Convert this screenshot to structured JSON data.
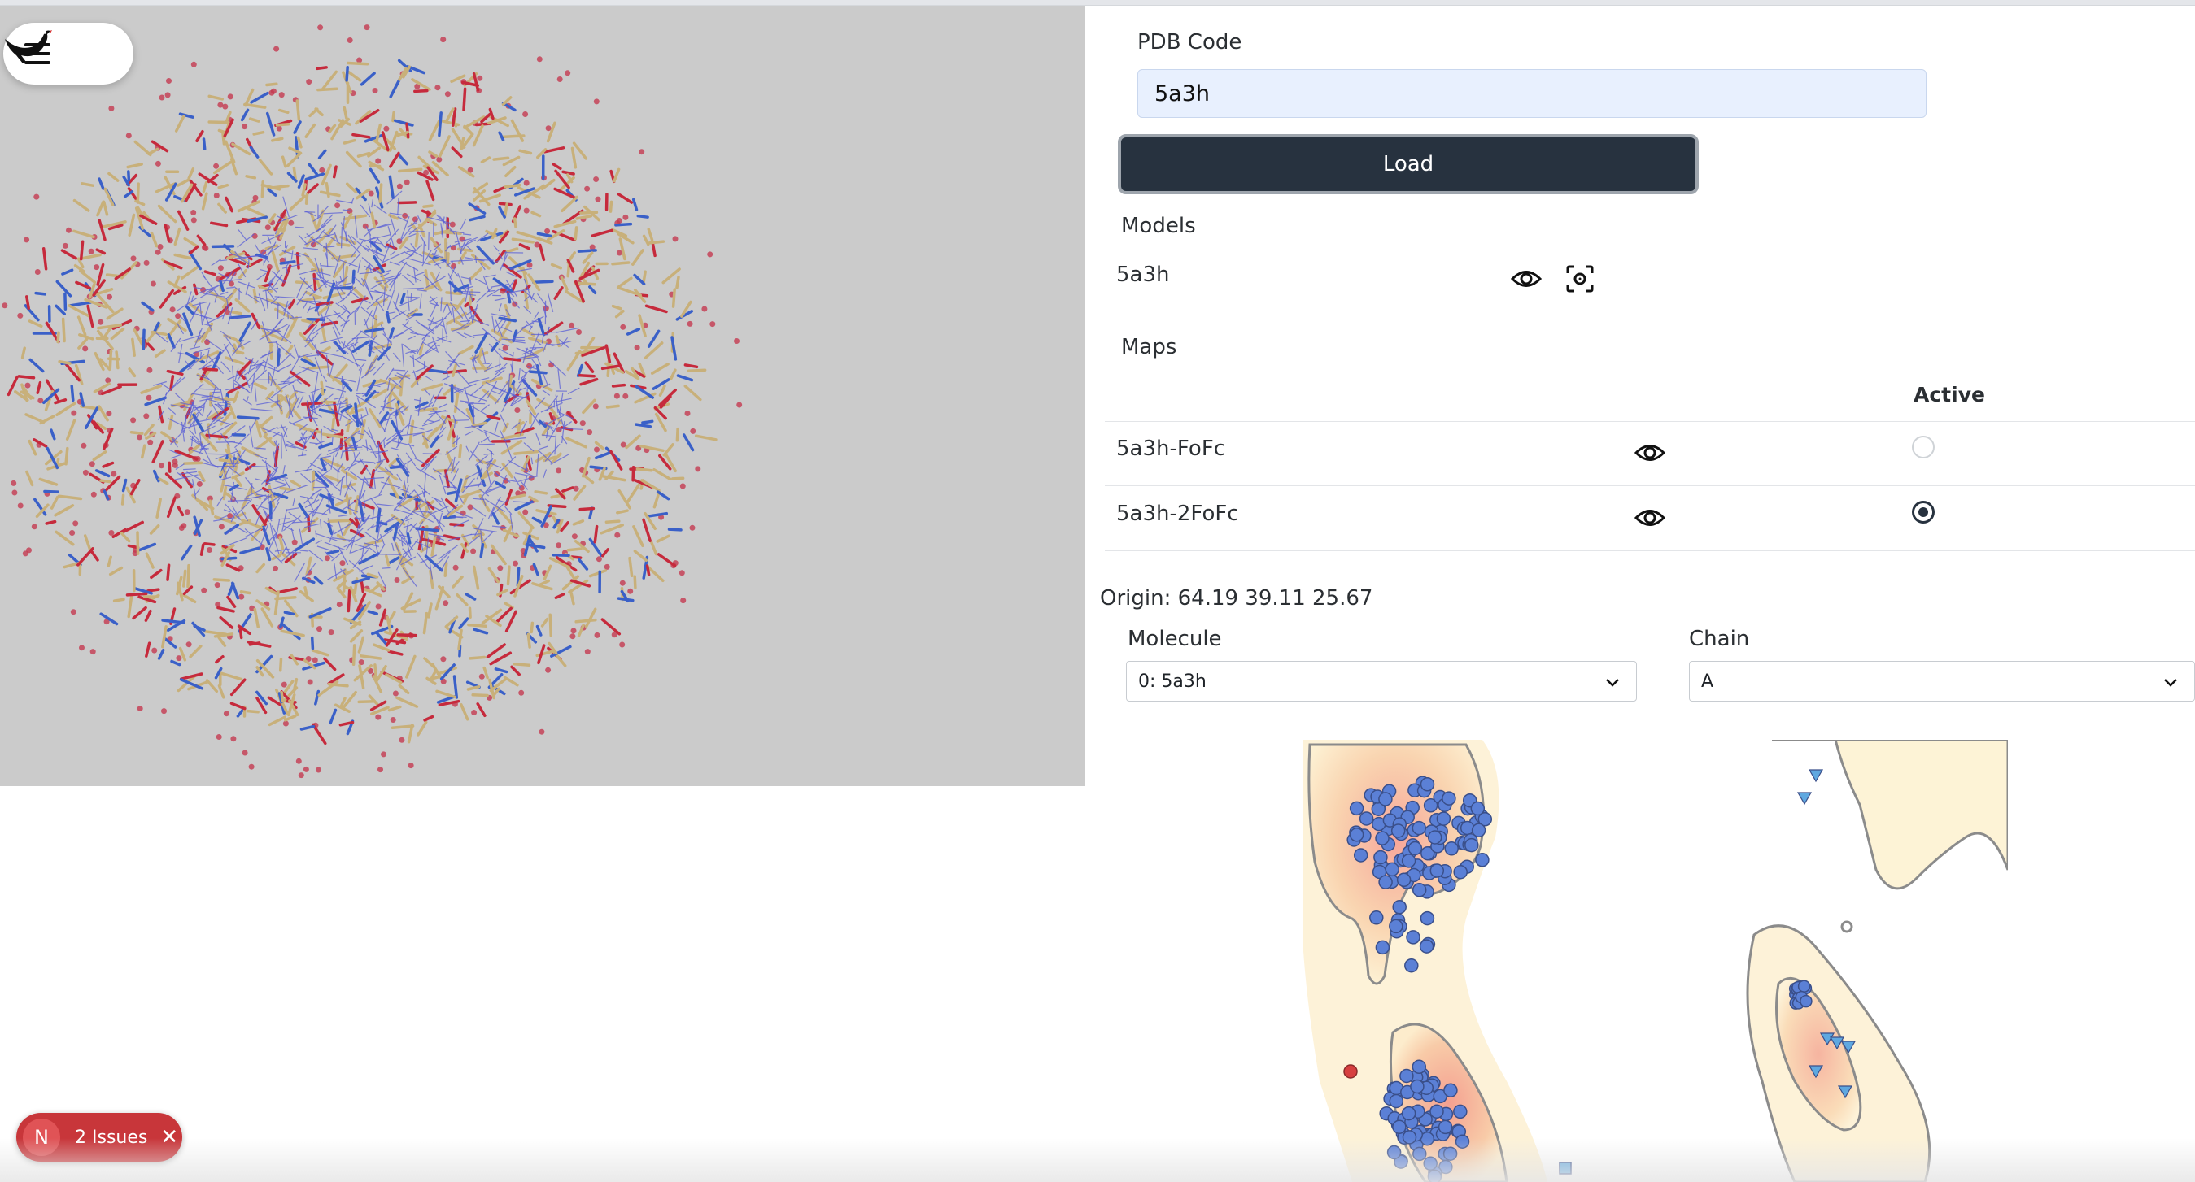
{
  "viewer": {
    "menu_icon": "hamburger-menu-icon",
    "logo_icon": "bird-logo-icon"
  },
  "form": {
    "pdb_label": "PDB Code",
    "pdb_value": "5a3h",
    "load_label": "Load"
  },
  "models": {
    "heading": "Models",
    "items": [
      {
        "name": "5a3h",
        "view_icon": "eye-icon",
        "center_icon": "focus-icon"
      }
    ]
  },
  "maps": {
    "heading": "Maps",
    "active_header": "Active",
    "items": [
      {
        "name": "5a3h-FoFc",
        "view_icon": "eye-icon",
        "active": false
      },
      {
        "name": "5a3h-2FoFc",
        "view_icon": "eye-icon",
        "active": true
      }
    ]
  },
  "origin": {
    "text": "Origin: 64.19 39.11 25.67"
  },
  "molecule": {
    "label": "Molecule",
    "selected": "0: 5a3h"
  },
  "chain": {
    "label": "Chain",
    "selected": "A"
  },
  "issues": {
    "initial": "N",
    "label": "2 Issues"
  },
  "colors": {
    "button_dark": "#27323f",
    "issues_red": "#c8363a",
    "viewer_bg": "#cbcbcb",
    "input_bg": "#e8f0fe"
  }
}
